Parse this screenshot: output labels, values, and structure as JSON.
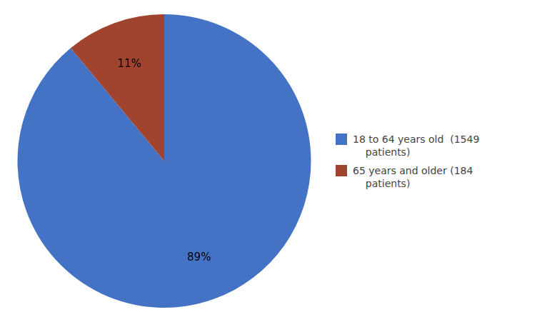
{
  "chart_data": {
    "type": "pie",
    "categories": [
      "18 to 64 years old  (1549\n    patients)",
      "65 years and older (184\n    patients)"
    ],
    "values": [
      89,
      11
    ],
    "value_labels": [
      "89%",
      "11%"
    ],
    "colors": [
      "#4472C4",
      "#A0432F"
    ],
    "data_labels": true,
    "legend": "right"
  }
}
